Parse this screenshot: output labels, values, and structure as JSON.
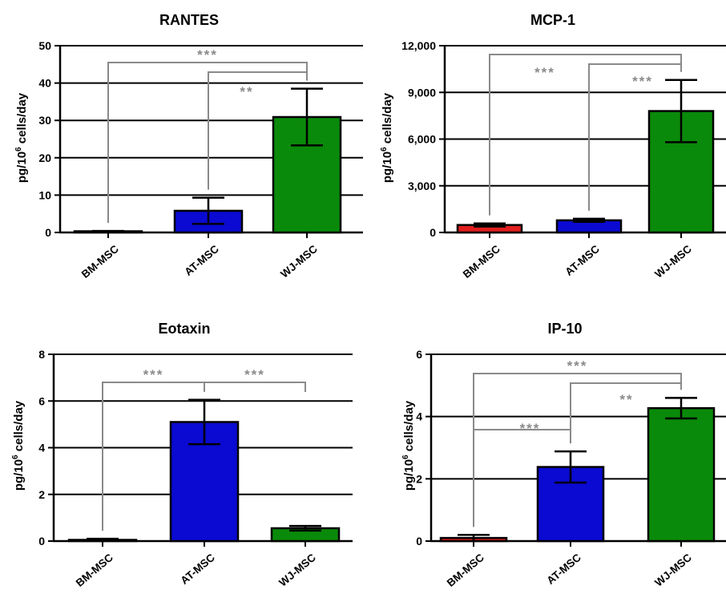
{
  "colors": {
    "BM-MSC": "#e01e1e",
    "AT-MSC": "#0a0ad2",
    "WJ-MSC": "#0a8a0a",
    "bracket": "#8a8a8a"
  },
  "ylabel_main": "pg/10",
  "ylabel_sup": "6",
  "ylabel_rest": " cells/day",
  "chart_data": [
    {
      "type": "bar",
      "title": "RANTES",
      "categories": [
        "BM-MSC",
        "AT-MSC",
        "WJ-MSC"
      ],
      "values": [
        0.2,
        5.8,
        30.9
      ],
      "errors": [
        0.2,
        3.5,
        7.6
      ],
      "ylim": [
        0,
        50
      ],
      "yticks": [
        0,
        10,
        20,
        30,
        40,
        50
      ],
      "yticklabels": [
        "0",
        "10",
        "20",
        "30",
        "40",
        "50"
      ],
      "grid": true,
      "significance": [
        {
          "from": 0,
          "to": 2,
          "label": "***"
        },
        {
          "from": 1,
          "to": 2,
          "label": "**"
        }
      ]
    },
    {
      "type": "bar",
      "title": "MCP-1",
      "categories": [
        "BM-MSC",
        "AT-MSC",
        "WJ-MSC"
      ],
      "values": [
        480,
        780,
        7800
      ],
      "errors": [
        100,
        100,
        2000
      ],
      "ylim": [
        0,
        12000
      ],
      "yticks": [
        0,
        3000,
        6000,
        9000,
        12000
      ],
      "yticklabels": [
        "0",
        "3,000",
        "6,000",
        "9,000",
        "12,000"
      ],
      "grid": true,
      "significance": [
        {
          "from": 0,
          "to": 2,
          "label": "***"
        },
        {
          "from": 1,
          "to": 2,
          "label": "***"
        }
      ]
    },
    {
      "type": "bar",
      "title": "Eotaxin",
      "categories": [
        "BM-MSC",
        "AT-MSC",
        "WJ-MSC"
      ],
      "values": [
        0.05,
        5.1,
        0.55
      ],
      "errors": [
        0.05,
        0.95,
        0.1
      ],
      "ylim": [
        0,
        8
      ],
      "yticks": [
        0,
        2,
        4,
        6,
        8
      ],
      "yticklabels": [
        "0",
        "2",
        "4",
        "6",
        "8"
      ],
      "grid": true,
      "significance": [
        {
          "from": 0,
          "to": 1,
          "label": "***"
        },
        {
          "from": 1,
          "to": 2,
          "label": "***"
        }
      ]
    },
    {
      "type": "bar",
      "title": "IP-10",
      "categories": [
        "BM-MSC",
        "AT-MSC",
        "WJ-MSC"
      ],
      "values": [
        0.1,
        2.38,
        4.27
      ],
      "errors": [
        0.1,
        0.5,
        0.33
      ],
      "ylim": [
        0,
        6
      ],
      "yticks": [
        0,
        2,
        4,
        6
      ],
      "yticklabels": [
        "0",
        "2",
        "4",
        "6"
      ],
      "grid": true,
      "significance": [
        {
          "from": 0,
          "to": 1,
          "label": "***"
        },
        {
          "from": 0,
          "to": 2,
          "label": "***"
        },
        {
          "from": 1,
          "to": 2,
          "label": "**"
        }
      ]
    }
  ]
}
